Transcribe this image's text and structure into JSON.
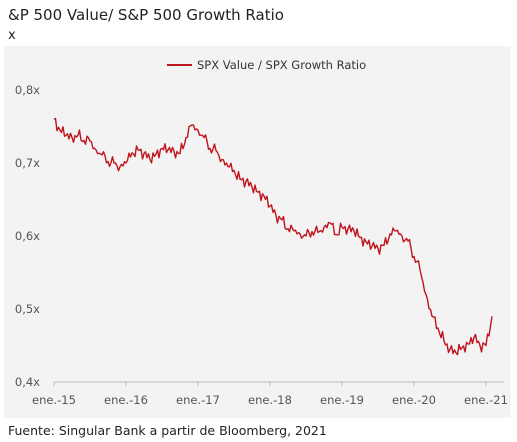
{
  "header": {
    "title": "&P 500 Value/ S&P 500 Growth Ratio",
    "unit": "x"
  },
  "footer": {
    "source": "Fuente: Singular Bank a partir de Bloomberg, 2021"
  },
  "chart_data": {
    "type": "line",
    "title": "&P 500 Value/ S&P 500 Growth Ratio",
    "xlabel": "",
    "ylabel": "x",
    "x_tick_labels": [
      "ene.-15",
      "ene.-16",
      "ene.-17",
      "ene.-18",
      "ene.-19",
      "ene.-20",
      "ene.-21"
    ],
    "y_tick_labels": [
      "0,4x",
      "0,5x",
      "0,6x",
      "0,7x",
      "0,8x"
    ],
    "y_ticks": [
      0.4,
      0.5,
      0.6,
      0.7,
      0.8
    ],
    "ylim": [
      0.4,
      0.8
    ],
    "xlim": [
      "2015-01",
      "2021-04"
    ],
    "grid": false,
    "legend_position": "top-center",
    "series_color": "#c0141c",
    "series": [
      {
        "name": "SPX Value / SPX Growth Ratio",
        "x": [
          "2015-01",
          "2015-02",
          "2015-03",
          "2015-04",
          "2015-05",
          "2015-06",
          "2015-07",
          "2015-08",
          "2015-09",
          "2015-10",
          "2015-11",
          "2015-12",
          "2016-01",
          "2016-02",
          "2016-03",
          "2016-04",
          "2016-05",
          "2016-06",
          "2016-07",
          "2016-08",
          "2016-09",
          "2016-10",
          "2016-11",
          "2016-12",
          "2017-01",
          "2017-02",
          "2017-03",
          "2017-04",
          "2017-05",
          "2017-06",
          "2017-07",
          "2017-08",
          "2017-09",
          "2017-10",
          "2017-11",
          "2017-12",
          "2018-01",
          "2018-02",
          "2018-03",
          "2018-04",
          "2018-05",
          "2018-06",
          "2018-07",
          "2018-08",
          "2018-09",
          "2018-10",
          "2018-11",
          "2018-12",
          "2019-01",
          "2019-02",
          "2019-03",
          "2019-04",
          "2019-05",
          "2019-06",
          "2019-07",
          "2019-08",
          "2019-09",
          "2019-10",
          "2019-11",
          "2019-12",
          "2020-01",
          "2020-02",
          "2020-03",
          "2020-04",
          "2020-05",
          "2020-06",
          "2020-07",
          "2020-08",
          "2020-09",
          "2020-10",
          "2020-11",
          "2020-12",
          "2021-01",
          "2021-02"
        ],
        "values": [
          0.76,
          0.745,
          0.738,
          0.735,
          0.738,
          0.731,
          0.73,
          0.718,
          0.711,
          0.702,
          0.7,
          0.695,
          0.7,
          0.714,
          0.718,
          0.713,
          0.705,
          0.712,
          0.72,
          0.718,
          0.716,
          0.713,
          0.735,
          0.752,
          0.745,
          0.735,
          0.72,
          0.717,
          0.705,
          0.695,
          0.69,
          0.678,
          0.675,
          0.667,
          0.66,
          0.655,
          0.641,
          0.628,
          0.622,
          0.61,
          0.607,
          0.603,
          0.6,
          0.606,
          0.605,
          0.612,
          0.618,
          0.602,
          0.612,
          0.61,
          0.607,
          0.598,
          0.592,
          0.586,
          0.583,
          0.587,
          0.603,
          0.607,
          0.6,
          0.593,
          0.572,
          0.554,
          0.52,
          0.49,
          0.474,
          0.456,
          0.445,
          0.44,
          0.447,
          0.452,
          0.461,
          0.45,
          0.45,
          0.49
        ]
      }
    ]
  }
}
